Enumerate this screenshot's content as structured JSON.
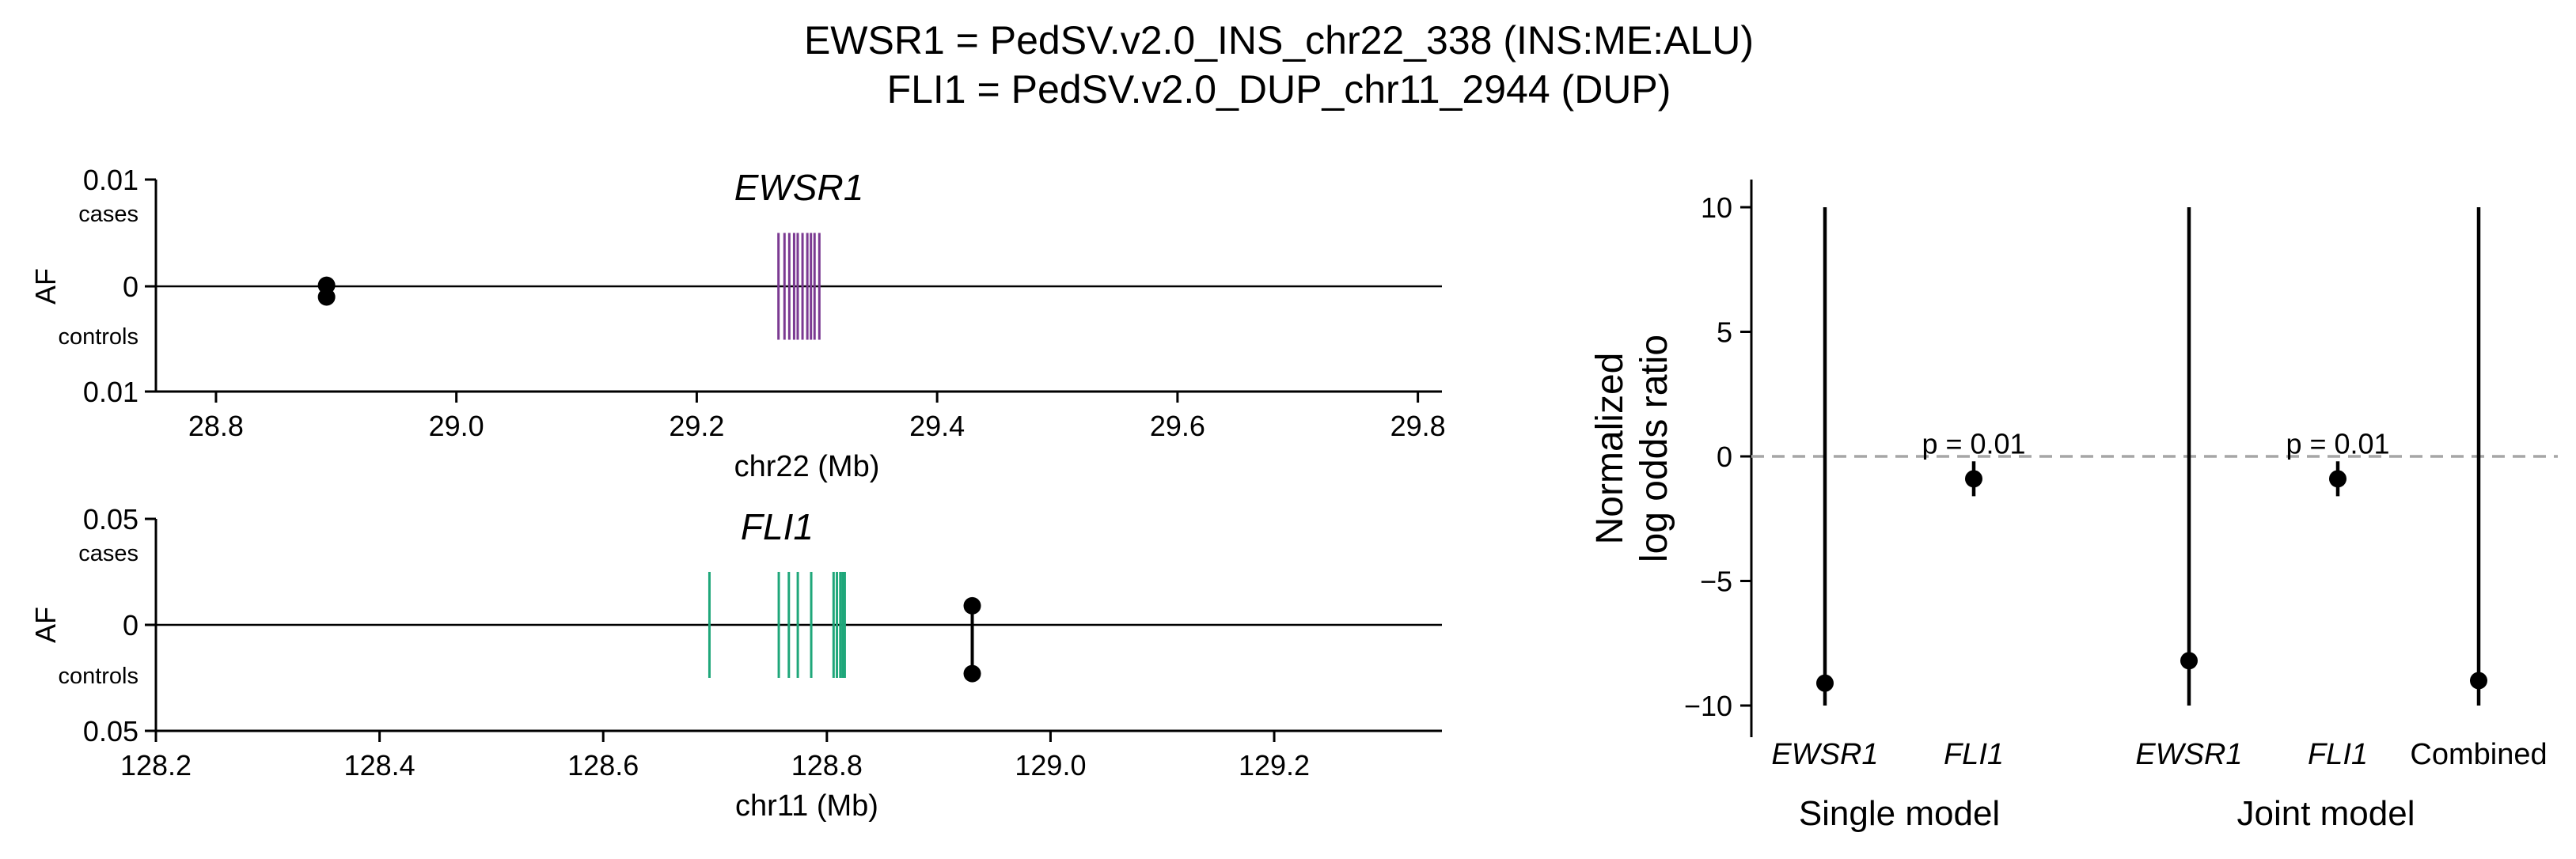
{
  "figure": {
    "title_lines": [
      "EWSR1 = PedSV.v2.0_INS_chr22_338 (INS:ME:ALU)",
      "FLI1 = PedSV.v2.0_DUP_chr11_2944 (DUP)"
    ]
  },
  "chart_data": [
    {
      "type": "scatter",
      "panel": "EWSR1 locus",
      "title": "EWSR1",
      "xlabel": "chr22 (Mb)",
      "ylabel": "AF",
      "xlim": [
        28.75,
        29.82
      ],
      "xticks": [
        "28.8",
        "29.0",
        "29.2",
        "29.4",
        "29.6",
        "29.8"
      ],
      "xtick_values": [
        28.8,
        29.0,
        29.2,
        29.4,
        29.6,
        29.8
      ],
      "ylim": [
        -0.01,
        0.01
      ],
      "yticks": [
        "0.01",
        "0",
        "0.01"
      ],
      "ytick_values": [
        0.01,
        0,
        -0.01
      ],
      "cases_label": "cases",
      "controls_label": "controls",
      "gene_color": "#7B3A92",
      "exons_mb": [
        29.268,
        29.273,
        29.277,
        29.281,
        29.284,
        29.288,
        29.292,
        29.295,
        29.298,
        29.302
      ],
      "exon_height_af": 0.005,
      "variants": [
        {
          "x": 28.892,
          "case_af": 0.0001,
          "control_af": 0.001
        }
      ]
    },
    {
      "type": "scatter",
      "panel": "FLI1 locus",
      "title": "FLI1",
      "xlabel": "chr11 (Mb)",
      "ylabel": "AF",
      "xlim": [
        128.2,
        129.35
      ],
      "xticks": [
        "128.2",
        "128.4",
        "128.6",
        "128.8",
        "129.0",
        "129.2"
      ],
      "xtick_values": [
        128.2,
        128.4,
        128.6,
        128.8,
        129.0,
        129.2
      ],
      "ylim": [
        -0.05,
        0.05
      ],
      "yticks": [
        "0.05",
        "0",
        "0.05"
      ],
      "ytick_values": [
        0.05,
        0,
        -0.05
      ],
      "cases_label": "cases",
      "controls_label": "controls",
      "gene_color": "#1FA77A",
      "exons_mb": [
        128.695,
        128.757,
        128.766,
        128.774,
        128.786,
        128.806,
        128.809,
        128.812,
        128.814,
        128.816
      ],
      "exon_height_af": 0.025,
      "variants": [
        {
          "x": 128.93,
          "case_af": 0.009,
          "control_af": 0.023
        }
      ]
    },
    {
      "type": "scatter",
      "panel": "Association",
      "ylabel": "Normalized\nlog odds ratio",
      "ylim": [
        -11,
        11
      ],
      "yticks": [
        "10",
        "5",
        "0",
        "−5",
        "−10"
      ],
      "ytick_values": [
        10,
        5,
        0,
        -5,
        -10
      ],
      "reference_line": 0,
      "groups": [
        "Single model",
        "Joint model"
      ],
      "points": [
        {
          "label": "EWSR1",
          "italic": true,
          "group": "Single model",
          "estimate": -9.1,
          "ci_low": -10,
          "ci_high": 10,
          "annotation": ""
        },
        {
          "label": "FLI1",
          "italic": true,
          "group": "Single model",
          "estimate": -0.9,
          "ci_low": -1.6,
          "ci_high": -0.2,
          "annotation": "p = 0.01"
        },
        {
          "label": "EWSR1",
          "italic": true,
          "group": "Joint model",
          "estimate": -8.2,
          "ci_low": -10,
          "ci_high": 10,
          "annotation": ""
        },
        {
          "label": "FLI1",
          "italic": true,
          "group": "Joint model",
          "estimate": -0.9,
          "ci_low": -1.6,
          "ci_high": -0.2,
          "annotation": "p = 0.01"
        },
        {
          "label": "Combined",
          "italic": false,
          "group": "Joint model",
          "estimate": -9.0,
          "ci_low": -10,
          "ci_high": 10,
          "annotation": ""
        }
      ]
    }
  ]
}
